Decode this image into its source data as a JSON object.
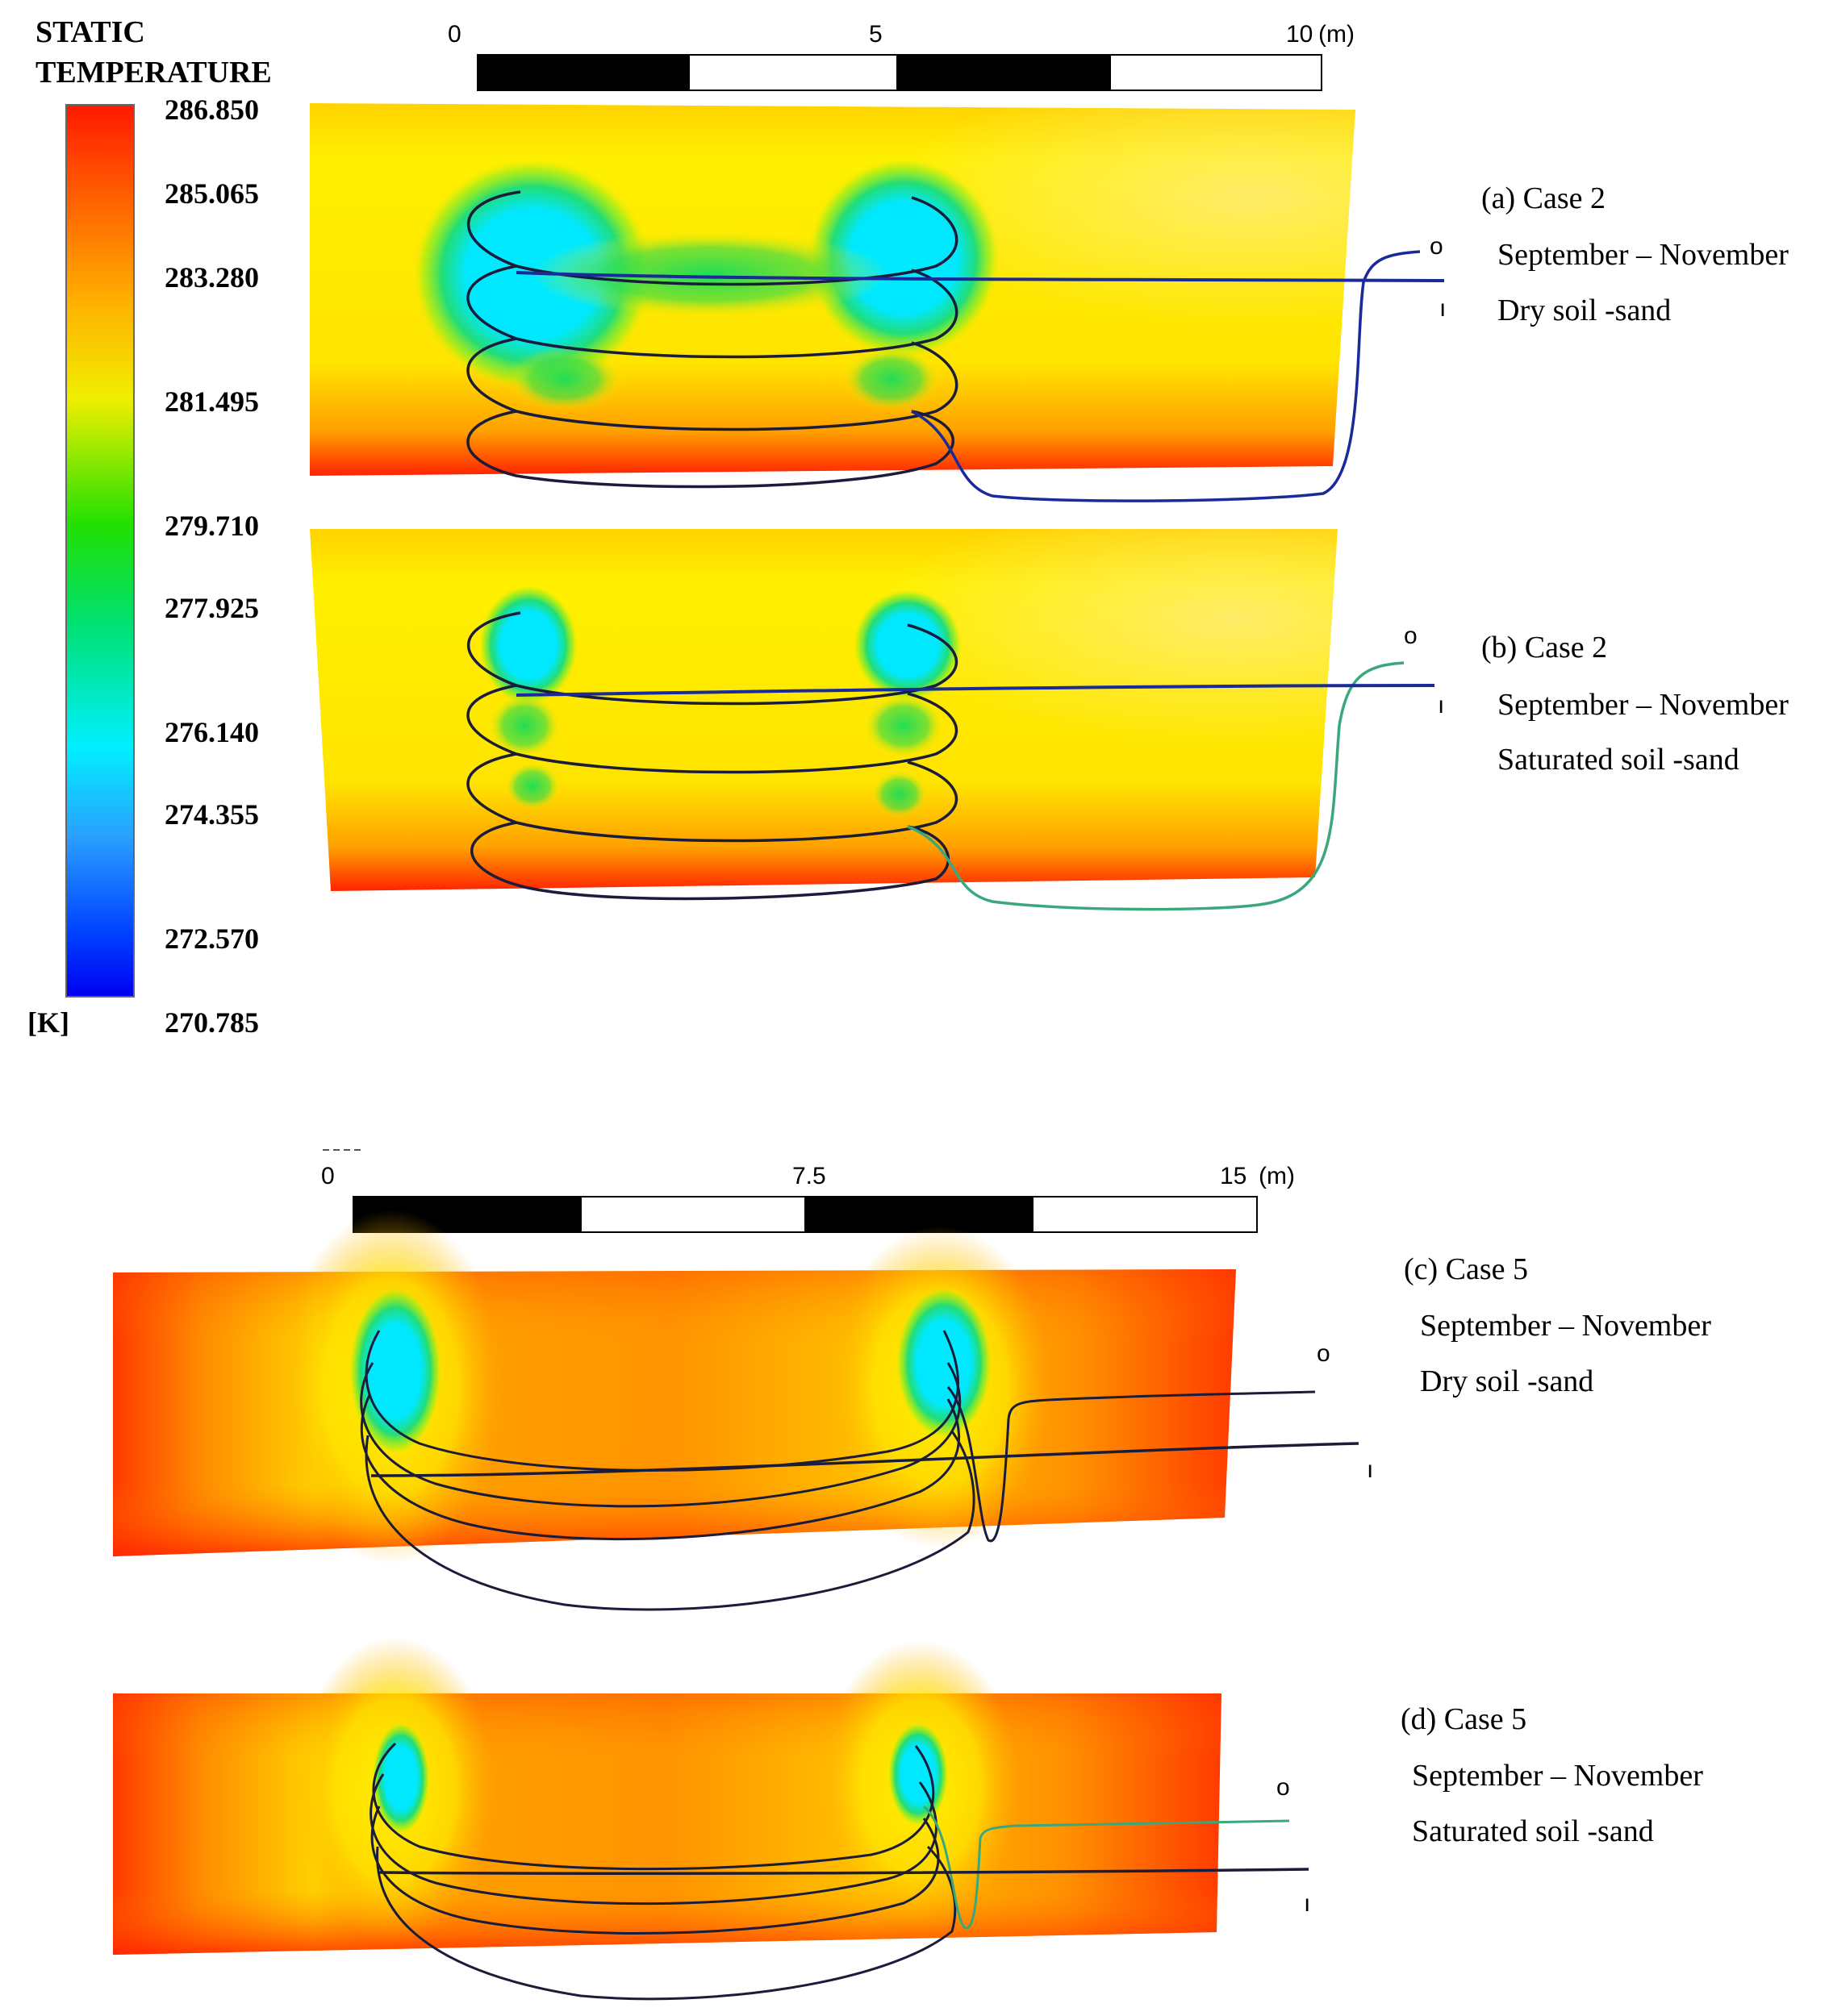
{
  "legend": {
    "title_line1": "STATIC",
    "title_line2": "TEMPERATURE",
    "unit": "[K]",
    "values": [
      "286.850",
      "285.065",
      "283.280",
      "281.495",
      "279.710",
      "277.925",
      "276.140",
      "274.355",
      "272.570",
      "270.785"
    ],
    "colors": [
      "#ff2a00",
      "#ff7a00",
      "#ffc400",
      "#f5f000",
      "#22dd22",
      "#22cc77",
      "#00e8ff",
      "#2aa8ff",
      "#0050ff",
      "#0000ff"
    ]
  },
  "scale_top": {
    "labels": [
      "0",
      "5",
      "10"
    ],
    "unit": "(m)"
  },
  "scale_bottom": {
    "labels": [
      "0",
      "7.5",
      "15"
    ],
    "unit": "(m)"
  },
  "panels": [
    {
      "id": "a",
      "line1": "(a) Case 2",
      "line2": "September – November",
      "line3": "Dry soil -sand",
      "outlet": "o",
      "inlet": "ı"
    },
    {
      "id": "b",
      "line1": "(b) Case 2",
      "line2": "September – November",
      "line3": "Saturated soil -sand",
      "outlet": "o",
      "inlet": "ı"
    },
    {
      "id": "c",
      "line1": "(c) Case 5",
      "line2": "September – November",
      "line3": "Dry soil -sand",
      "outlet": "o",
      "inlet": "ı"
    },
    {
      "id": "d",
      "line1": "(d) Case 5",
      "line2": "September – November",
      "line3": "Saturated soil -sand",
      "outlet": "o",
      "inlet": "ı"
    }
  ],
  "colors": {
    "soil_yellow": "#ffe000",
    "soil_orange": "#ff9a00",
    "soil_red": "#ff2a00",
    "cold_cyan": "#00e5ff",
    "pipe_dark": "#1b1b3a",
    "pipe_blue": "#1a2a9a",
    "pipe_green": "#3aa87a"
  }
}
